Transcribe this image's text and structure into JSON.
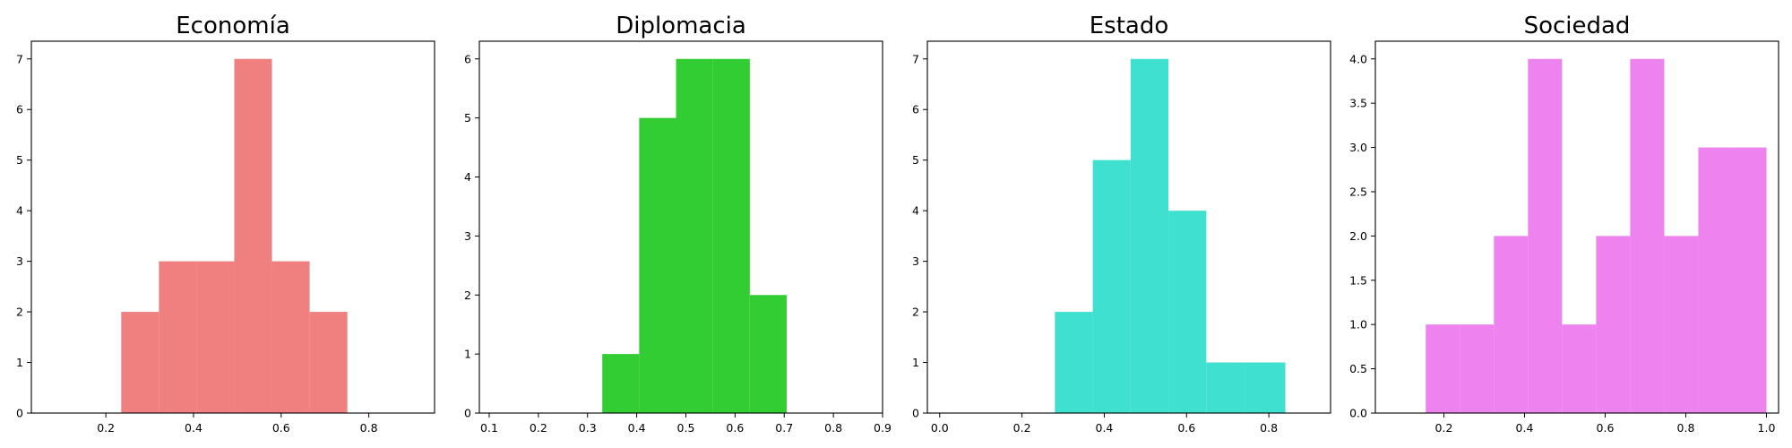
{
  "chart_data": [
    {
      "type": "bar",
      "title": "Economía",
      "color": "#f08080",
      "xlim": [
        0.03,
        0.95
      ],
      "ylim": [
        0,
        7.35
      ],
      "xticks": [
        {
          "value": 0.2,
          "label": "0.2"
        },
        {
          "value": 0.4,
          "label": "0.4"
        },
        {
          "value": 0.6,
          "label": "0.6"
        },
        {
          "value": 0.8,
          "label": "0.8"
        }
      ],
      "yticks": [
        {
          "value": 0,
          "label": "0"
        },
        {
          "value": 1,
          "label": "1"
        },
        {
          "value": 2,
          "label": "2"
        },
        {
          "value": 3,
          "label": "3"
        },
        {
          "value": 4,
          "label": "4"
        },
        {
          "value": 5,
          "label": "5"
        },
        {
          "value": 6,
          "label": "6"
        },
        {
          "value": 7,
          "label": "7"
        }
      ],
      "bins": [
        {
          "x0": 0.235,
          "x1": 0.321,
          "count": 2
        },
        {
          "x0": 0.321,
          "x1": 0.407,
          "count": 3
        },
        {
          "x0": 0.407,
          "x1": 0.493,
          "count": 3
        },
        {
          "x0": 0.493,
          "x1": 0.579,
          "count": 7
        },
        {
          "x0": 0.579,
          "x1": 0.665,
          "count": 3
        },
        {
          "x0": 0.665,
          "x1": 0.751,
          "count": 2
        }
      ]
    },
    {
      "type": "bar",
      "title": "Diplomacia",
      "color": "#32cd32",
      "xlim": [
        0.08,
        0.9
      ],
      "ylim": [
        0,
        6.3
      ],
      "xticks": [
        {
          "value": 0.1,
          "label": "0.1"
        },
        {
          "value": 0.2,
          "label": "0.2"
        },
        {
          "value": 0.3,
          "label": "0.3"
        },
        {
          "value": 0.4,
          "label": "0.4"
        },
        {
          "value": 0.5,
          "label": "0.5"
        },
        {
          "value": 0.6,
          "label": "0.6"
        },
        {
          "value": 0.7,
          "label": "0.7"
        },
        {
          "value": 0.8,
          "label": "0.8"
        },
        {
          "value": 0.9,
          "label": "0.9"
        }
      ],
      "yticks": [
        {
          "value": 0,
          "label": "0"
        },
        {
          "value": 1,
          "label": "1"
        },
        {
          "value": 2,
          "label": "2"
        },
        {
          "value": 3,
          "label": "3"
        },
        {
          "value": 4,
          "label": "4"
        },
        {
          "value": 5,
          "label": "5"
        },
        {
          "value": 6,
          "label": "6"
        }
      ],
      "bins": [
        {
          "x0": 0.33,
          "x1": 0.405,
          "count": 1
        },
        {
          "x0": 0.405,
          "x1": 0.48,
          "count": 5
        },
        {
          "x0": 0.48,
          "x1": 0.555,
          "count": 6
        },
        {
          "x0": 0.555,
          "x1": 0.63,
          "count": 6
        },
        {
          "x0": 0.63,
          "x1": 0.705,
          "count": 2
        }
      ]
    },
    {
      "type": "bar",
      "title": "Estado",
      "color": "#40e0d0",
      "xlim": [
        -0.03,
        0.95
      ],
      "ylim": [
        0,
        7.35
      ],
      "xticks": [
        {
          "value": 0.0,
          "label": "0.0"
        },
        {
          "value": 0.2,
          "label": "0.2"
        },
        {
          "value": 0.4,
          "label": "0.4"
        },
        {
          "value": 0.6,
          "label": "0.6"
        },
        {
          "value": 0.8,
          "label": "0.8"
        }
      ],
      "yticks": [
        {
          "value": 0,
          "label": "0"
        },
        {
          "value": 1,
          "label": "1"
        },
        {
          "value": 2,
          "label": "2"
        },
        {
          "value": 3,
          "label": "3"
        },
        {
          "value": 4,
          "label": "4"
        },
        {
          "value": 5,
          "label": "5"
        },
        {
          "value": 6,
          "label": "6"
        },
        {
          "value": 7,
          "label": "7"
        }
      ],
      "bins": [
        {
          "x0": 0.28,
          "x1": 0.372,
          "count": 2
        },
        {
          "x0": 0.372,
          "x1": 0.464,
          "count": 5
        },
        {
          "x0": 0.464,
          "x1": 0.556,
          "count": 7
        },
        {
          "x0": 0.556,
          "x1": 0.648,
          "count": 4
        },
        {
          "x0": 0.648,
          "x1": 0.74,
          "count": 1
        },
        {
          "x0": 0.74,
          "x1": 0.84,
          "count": 1
        }
      ]
    },
    {
      "type": "bar",
      "title": "Sociedad",
      "color": "#ee82ee",
      "xlim": [
        0.03,
        1.03
      ],
      "ylim": [
        0,
        4.2
      ],
      "xticks": [
        {
          "value": 0.2,
          "label": "0.2"
        },
        {
          "value": 0.4,
          "label": "0.4"
        },
        {
          "value": 0.6,
          "label": "0.6"
        },
        {
          "value": 0.8,
          "label": "0.8"
        },
        {
          "value": 1.0,
          "label": "1.0"
        }
      ],
      "yticks": [
        {
          "value": 0,
          "label": "0.0"
        },
        {
          "value": 0.5,
          "label": "0.5"
        },
        {
          "value": 1,
          "label": "1.0"
        },
        {
          "value": 1.5,
          "label": "1.5"
        },
        {
          "value": 2,
          "label": "2.0"
        },
        {
          "value": 2.5,
          "label": "2.5"
        },
        {
          "value": 3,
          "label": "3.0"
        },
        {
          "value": 3.5,
          "label": "3.5"
        },
        {
          "value": 4,
          "label": "4.0"
        }
      ],
      "bins": [
        {
          "x0": 0.155,
          "x1": 0.2395,
          "count": 1
        },
        {
          "x0": 0.2395,
          "x1": 0.324,
          "count": 1
        },
        {
          "x0": 0.324,
          "x1": 0.4085,
          "count": 2
        },
        {
          "x0": 0.4085,
          "x1": 0.493,
          "count": 4
        },
        {
          "x0": 0.493,
          "x1": 0.5775,
          "count": 1
        },
        {
          "x0": 0.5775,
          "x1": 0.662,
          "count": 2
        },
        {
          "x0": 0.662,
          "x1": 0.7465,
          "count": 4
        },
        {
          "x0": 0.7465,
          "x1": 0.831,
          "count": 2
        },
        {
          "x0": 0.831,
          "x1": 0.9155,
          "count": 3
        },
        {
          "x0": 0.9155,
          "x1": 1.0,
          "count": 3
        }
      ]
    }
  ]
}
